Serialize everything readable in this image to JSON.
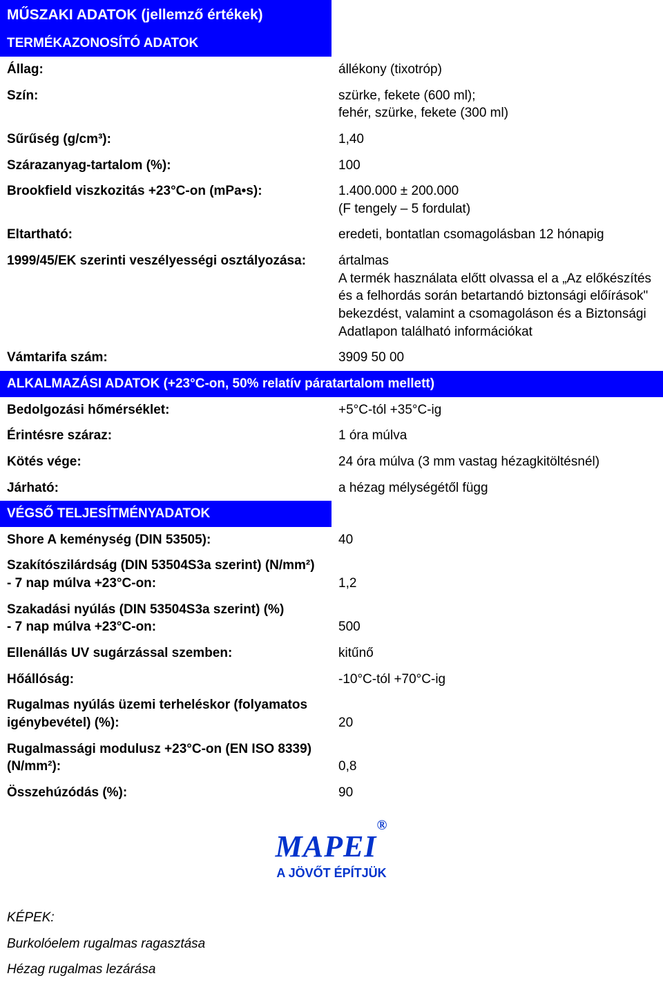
{
  "colors": {
    "header_bg": "#0000ff",
    "header_text": "#ffffff",
    "body_bg": "#ffffff",
    "body_text": "#000000",
    "logo_color": "#0033cc"
  },
  "title": "MŰSZAKI ADATOK (jellemző értékek)",
  "sections": {
    "product_id": {
      "heading": "TERMÉKAZONOSÍTÓ ADATOK",
      "rows": {
        "allag": {
          "label": "Állag:",
          "value": "állékony (tixotróp)"
        },
        "szin": {
          "label": "Szín:",
          "value": "szürke, fekete (600 ml);\nfehér, szürke, fekete (300 ml)"
        },
        "suruseg": {
          "label": "Sűrűség (g/cm³):",
          "value": "1,40"
        },
        "szarazanyag": {
          "label": "Szárazanyag-tartalom (%):",
          "value": "100"
        },
        "brookfield": {
          "label": "Brookfield viszkozitás +23°C-on (mPa•s):",
          "value": "1.400.000 ± 200.000\n(F tengely – 5 fordulat)"
        },
        "eltarthato": {
          "label": "Eltartható:",
          "value": "eredeti, bontatlan csomagolásban 12 hónapig"
        },
        "veszely": {
          "label": "1999/45/EK szerinti veszélyességi osztályozása:",
          "value": "ártalmas\nA termék használata előtt olvassa el a „Az előkészítés és a felhordás során betartandó biztonsági előírások\" bekezdést, valamint a csomagoláson és a Biztonsági Adatlapon található információkat"
        },
        "vamtarifa": {
          "label": "Vámtarifa szám:",
          "value": "3909 50 00"
        }
      }
    },
    "application": {
      "heading": "ALKALMAZÁSI ADATOK (+23°C-on, 50% relatív páratartalom mellett)",
      "rows": {
        "bedolgozasi": {
          "label": "Bedolgozási hőmérséklet:",
          "value": "+5°C-tól +35°C-ig"
        },
        "erintesre": {
          "label": "Érintésre száraz:",
          "value": "1 óra múlva"
        },
        "kotesvege": {
          "label": "Kötés vége:",
          "value": "24 óra múlva (3 mm vastag hézagkitöltésnél)"
        },
        "jarhato": {
          "label": "Járható:",
          "value": "a hézag mélységétől függ"
        }
      }
    },
    "performance": {
      "heading": "VÉGSŐ TELJESÍTMÉNYADATOK",
      "rows": {
        "shore": {
          "label": "Shore A keménység (DIN 53505):",
          "value": "40"
        },
        "szakito": {
          "label": "Szakítószilárdság (DIN 53504S3a szerint) (N/mm²)\n- 7 nap múlva +23°C-on:",
          "value": "1,2"
        },
        "szakadasi": {
          "label": "Szakadási nyúlás (DIN 53504S3a szerint) (%)\n- 7 nap múlva +23°C-on:",
          "value": "500"
        },
        "uv": {
          "label": "Ellenállás UV sugárzással szemben:",
          "value": "kitűnő"
        },
        "hoallosag": {
          "label": "Hőállóság:",
          "value": "-10°C-tól +70°C-ig"
        },
        "rugalmas_nyulas": {
          "label": "Rugalmas nyúlás üzemi terheléskor (folyamatos igénybevétel) (%):",
          "value": "20"
        },
        "rugalmassagi": {
          "label": "Rugalmassági modulusz +23°C-on (EN ISO 8339) (N/mm²):",
          "value": "0,8"
        },
        "osszehuzodas": {
          "label": "Összehúzódás (%):",
          "value": "90"
        }
      }
    }
  },
  "logo": {
    "brand": "MAPEI",
    "reg": "®",
    "tagline": "A JÖVŐT ÉPÍTJÜK"
  },
  "footer": {
    "kepek": "KÉPEK:",
    "line1": "Burkolóelem rugalmas ragasztása",
    "line2": "Hézag rugalmas lezárása"
  }
}
